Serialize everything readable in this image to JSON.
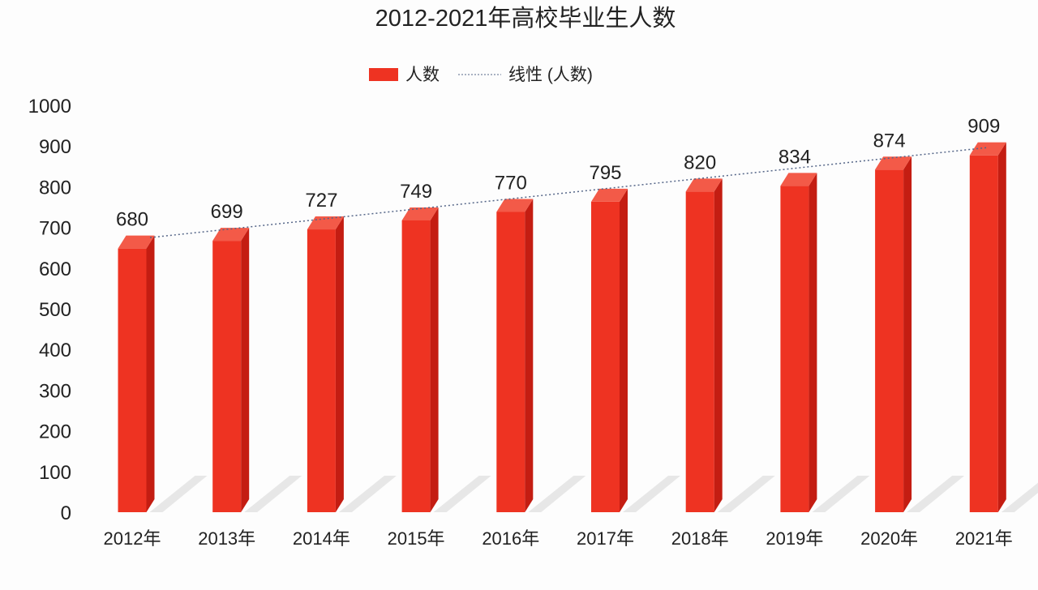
{
  "chart_data": {
    "type": "bar",
    "title": "2012-2021年高校毕业生人数",
    "categories": [
      "2012年",
      "2013年",
      "2014年",
      "2015年",
      "2016年",
      "2017年",
      "2018年",
      "2019年",
      "2020年",
      "2021年"
    ],
    "series": [
      {
        "name": "人数",
        "values": [
          680,
          699,
          727,
          749,
          770,
          795,
          820,
          834,
          874,
          909
        ],
        "color": "#ee3322"
      }
    ],
    "trendline": {
      "name": "线性 (人数)",
      "type": "linear",
      "style": "dotted",
      "color": "#556688"
    },
    "yticks": [
      "0",
      "100",
      "200",
      "300",
      "400",
      "500",
      "600",
      "700",
      "800",
      "900",
      "1000"
    ],
    "ylim": [
      0,
      1000
    ],
    "grid": false,
    "legend": "top",
    "data_labels": true
  }
}
